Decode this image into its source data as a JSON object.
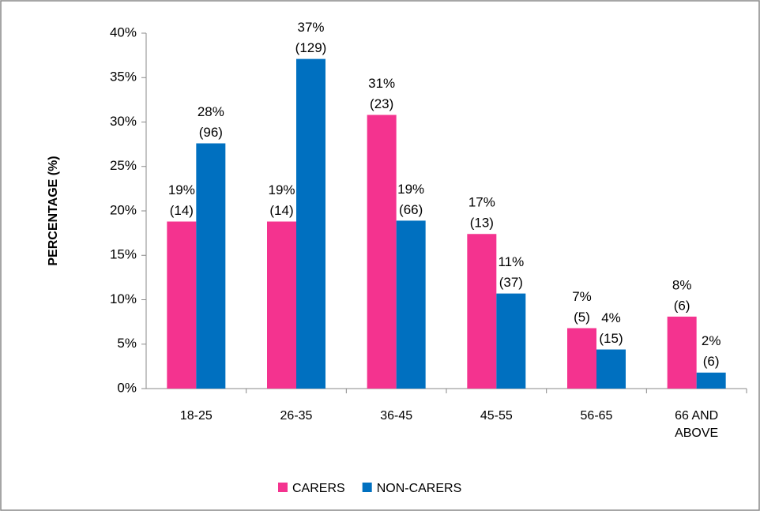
{
  "chart_data": {
    "type": "bar",
    "y_axis_label": "PERCENTAGE (%)",
    "categories": [
      "18-25",
      "26-35",
      "36-45",
      "45-55",
      "56-65",
      "66 AND ABOVE"
    ],
    "series": [
      {
        "name": "CARERS",
        "color": "#f4338f",
        "values": [
          18.8,
          18.8,
          30.8,
          17.4,
          6.8,
          8.1
        ],
        "value_labels": [
          "19%",
          "19%",
          "31%",
          "17%",
          "7%",
          "8%"
        ],
        "count_labels": [
          "(14)",
          "(14)",
          "(23)",
          "(13)",
          "(5)",
          "(6)"
        ]
      },
      {
        "name": "NON-CARERS",
        "color": "#0070c0",
        "values": [
          27.6,
          37.1,
          18.9,
          10.7,
          4.4,
          1.8
        ],
        "value_labels": [
          "28%",
          "37%",
          "19%",
          "11%",
          "4%",
          "2%"
        ],
        "count_labels": [
          "(96)",
          "(129)",
          "(66)",
          "(37)",
          "(15)",
          "(6)"
        ]
      }
    ],
    "ylim": [
      0,
      40
    ],
    "yticks": [
      {
        "value": 0,
        "label": "0%"
      },
      {
        "value": 5,
        "label": "5%"
      },
      {
        "value": 10,
        "label": "10%"
      },
      {
        "value": 15,
        "label": "15%"
      },
      {
        "value": 20,
        "label": "20%"
      },
      {
        "value": 25,
        "label": "25%"
      },
      {
        "value": 30,
        "label": "30%"
      },
      {
        "value": 35,
        "label": "35%"
      },
      {
        "value": 40,
        "label": "40%"
      }
    ],
    "legend": "bottom"
  }
}
